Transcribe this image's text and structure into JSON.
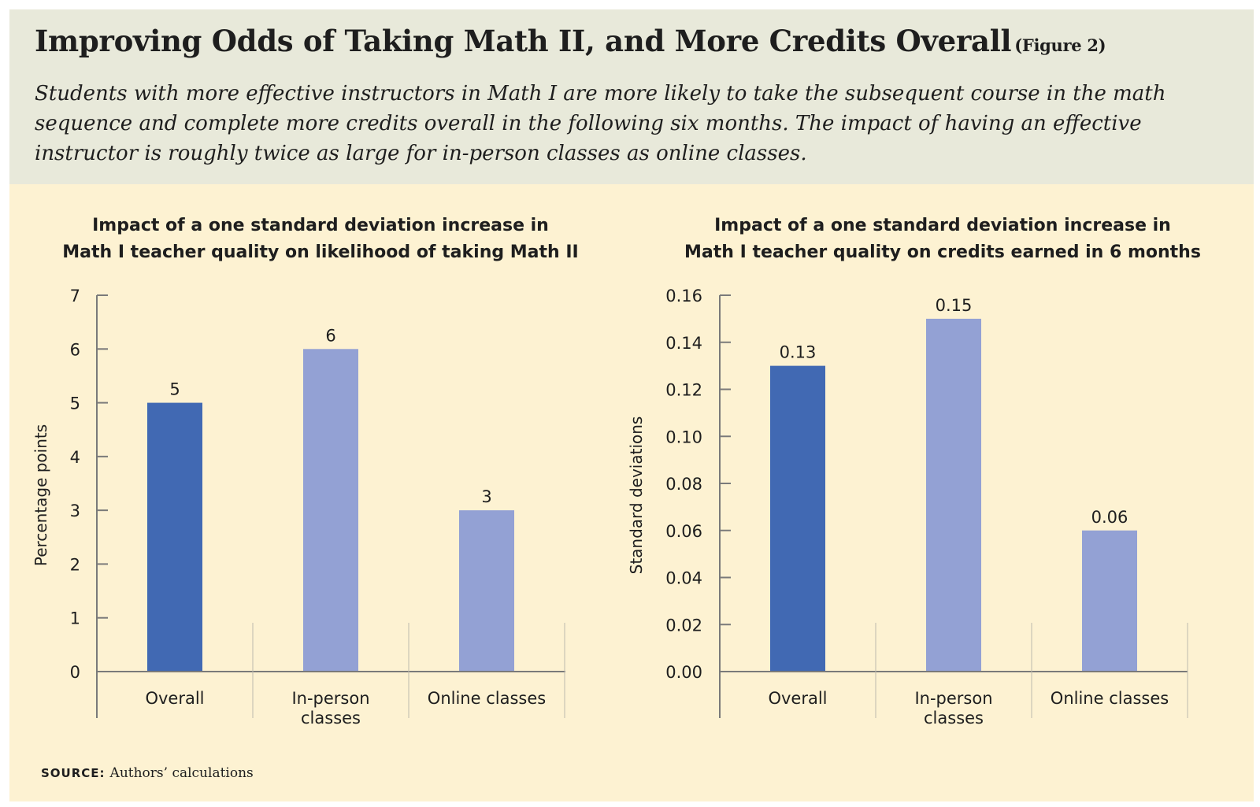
{
  "title": "Improving Odds of Taking Math II, and More Credits Overall",
  "figure_tag": "(Figure 2)",
  "subtitle": "Students with more effective instructors in Math I are more likely to take the subsequent course in the math sequence and complete more credits overall in the following six months. The impact of having an effective instructor is roughly twice as large for in-person classes as online classes.",
  "source_label": "SOURCE:",
  "source_text": "Authors’ calculations",
  "colors": {
    "overall": "#4169b3",
    "subgroup": "#93a1d4",
    "axis": "#7a7a7a",
    "header_bg": "#e8e9da",
    "panel_bg": "#fdf2d2"
  },
  "chart_data": [
    {
      "type": "bar",
      "title_lines": [
        "Impact of a one standard deviation increase in",
        "Math I teacher quality on likelihood of taking Math II"
      ],
      "categories": [
        [
          "Overall"
        ],
        [
          "In-person",
          "classes"
        ],
        [
          "Online classes"
        ]
      ],
      "values": [
        5,
        6,
        3
      ],
      "value_labels": [
        "5",
        "6",
        "3"
      ],
      "ylabel": "Percentage points",
      "ylim": [
        0,
        7
      ],
      "yticks": [
        "0",
        "1",
        "2",
        "3",
        "4",
        "5",
        "6",
        "7"
      ],
      "bar_colors": [
        "#4169b3",
        "#93a1d4",
        "#93a1d4"
      ],
      "grid": false
    },
    {
      "type": "bar",
      "title_lines": [
        "Impact of a one standard deviation increase in",
        "Math I teacher quality on credits earned in 6 months"
      ],
      "categories": [
        [
          "Overall"
        ],
        [
          "In-person",
          "classes"
        ],
        [
          "Online classes"
        ]
      ],
      "values": [
        0.13,
        0.15,
        0.06
      ],
      "value_labels": [
        "0.13",
        "0.15",
        "0.06"
      ],
      "ylabel": "Standard deviations",
      "ylim": [
        0,
        0.16
      ],
      "yticks": [
        "0.00",
        "0.02",
        "0.04",
        "0.06",
        "0.08",
        "0.10",
        "0.12",
        "0.14",
        "0.16"
      ],
      "bar_colors": [
        "#4169b3",
        "#93a1d4",
        "#93a1d4"
      ],
      "grid": false
    }
  ]
}
